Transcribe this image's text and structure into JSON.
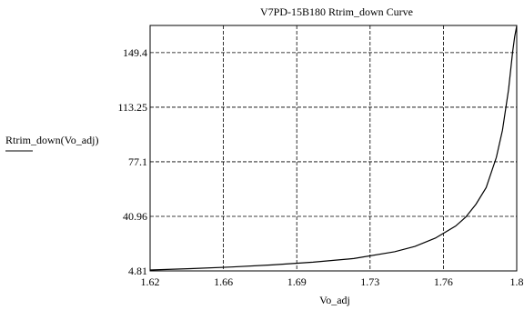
{
  "chart_data": {
    "type": "line",
    "title": "V7PD-15B180 Rtrim_down Curve",
    "xlabel": "Vo_adj",
    "ylabel": "Rtrim_down(Vo_adj)",
    "xlim": [
      1.62,
      1.8
    ],
    "ylim": [
      4.81,
      167.4
    ],
    "x_ticks": [
      "1.62",
      "1.66",
      "1.69",
      "1.73",
      "1.76",
      "1.8"
    ],
    "x_tick_values": [
      1.62,
      1.656,
      1.692,
      1.728,
      1.764,
      1.8
    ],
    "y_ticks": [
      "4.81",
      "40.96",
      "77.1",
      "113.25",
      "149.4"
    ],
    "y_tick_values": [
      4.81,
      40.96,
      77.1,
      113.25,
      149.4
    ],
    "grid": true,
    "legend": "none",
    "series": [
      {
        "color": "#000000",
        "x": [
          1.62,
          1.64,
          1.66,
          1.68,
          1.7,
          1.72,
          1.74,
          1.75,
          1.76,
          1.77,
          1.775,
          1.78,
          1.785,
          1.79,
          1.793,
          1.796,
          1.798,
          1.799,
          1.8
        ],
        "y": [
          5.4,
          6.3,
          7.4,
          8.8,
          10.6,
          13.0,
          17.5,
          21.0,
          26.5,
          34.5,
          40.5,
          49.0,
          60.0,
          80.0,
          98.0,
          125.0,
          150.0,
          160.0,
          167.0
        ]
      }
    ]
  }
}
